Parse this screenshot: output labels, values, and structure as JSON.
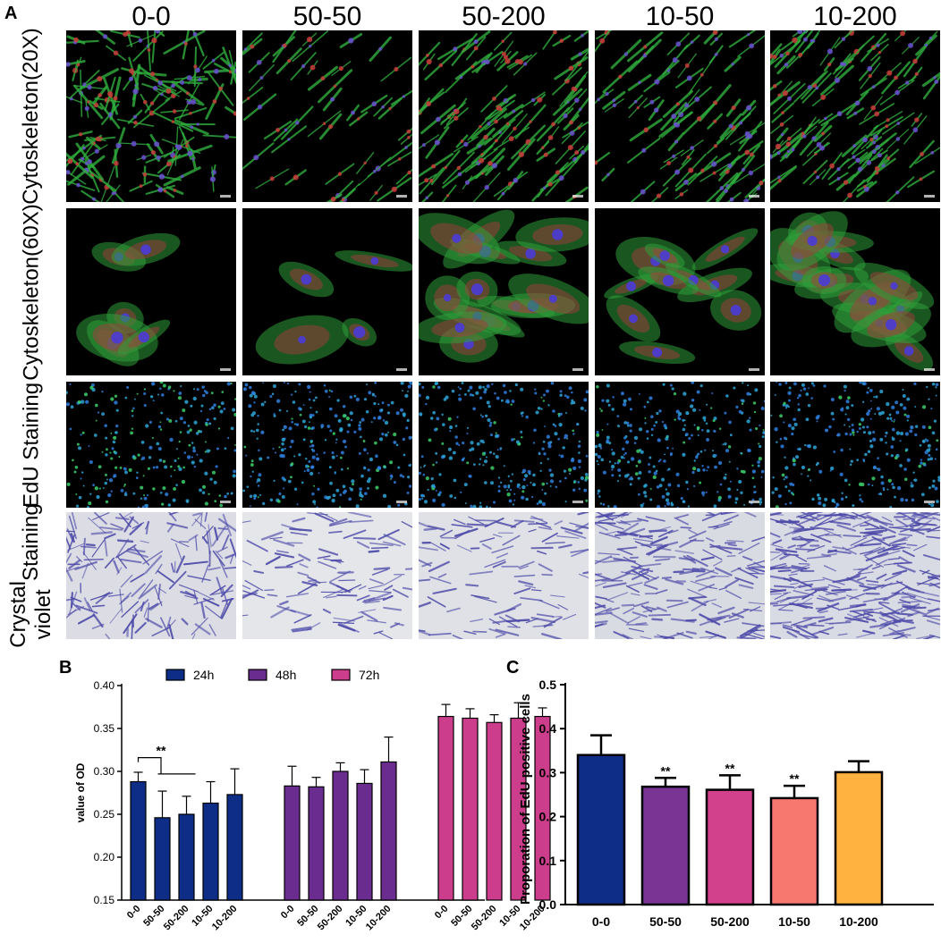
{
  "panel_a": {
    "letter": "A",
    "columns": [
      "0-0",
      "50-50",
      "50-200",
      "10-50",
      "10-200"
    ],
    "rows": [
      {
        "label_lines": [
          "Cytoskeleton",
          "(20X)"
        ],
        "kind": "cyto20"
      },
      {
        "label_lines": [
          "Cytoskeleton",
          "(60X)"
        ],
        "kind": "cyto60"
      },
      {
        "label_lines": [
          "EdU Staining"
        ],
        "kind": "edu"
      },
      {
        "label_lines": [
          "Crystal violet",
          "Staining"
        ],
        "kind": "crystal"
      }
    ]
  },
  "panel_b": {
    "letter": "B",
    "chart_data": {
      "type": "bar",
      "ylabel": "value of OD",
      "ylim": [
        0.15,
        0.4
      ],
      "yticks": [
        "0.15",
        "0.20",
        "0.25",
        "0.30",
        "0.35",
        "0.40"
      ],
      "categories": [
        "0-0",
        "50-50",
        "50-200",
        "10-50",
        "10-200"
      ],
      "series": [
        {
          "name": "24h",
          "color": "#0d2d86",
          "values": [
            0.288,
            0.246,
            0.25,
            0.263,
            0.273
          ],
          "errors": [
            0.011,
            0.031,
            0.021,
            0.025,
            0.03
          ]
        },
        {
          "name": "48h",
          "color": "#6a2d8f",
          "values": [
            0.283,
            0.282,
            0.3,
            0.286,
            0.311
          ],
          "errors": [
            0.023,
            0.011,
            0.01,
            0.016,
            0.029
          ]
        },
        {
          "name": "72h",
          "color": "#cc3d8c",
          "values": [
            0.364,
            0.362,
            0.357,
            0.362,
            0.364
          ],
          "errors": [
            0.014,
            0.011,
            0.009,
            0.018,
            0.01
          ]
        }
      ],
      "legend_placement": "top",
      "annotation": "**"
    }
  },
  "panel_c": {
    "letter": "C",
    "chart_data": {
      "type": "bar",
      "ylabel": "Proporation of EdU  positive cells",
      "ylim": [
        0.0,
        0.5
      ],
      "yticks": [
        "0.0",
        "0.1",
        "0.2",
        "0.3",
        "0.4",
        "0.5"
      ],
      "categories": [
        "0-0",
        "50-50",
        "50-200",
        "10-50",
        "10-200"
      ],
      "values": [
        0.34,
        0.268,
        0.261,
        0.242,
        0.301
      ],
      "errors": [
        0.045,
        0.02,
        0.033,
        0.028,
        0.025
      ],
      "colors": [
        "#0d2d86",
        "#7a3594",
        "#d2418c",
        "#f7786e",
        "#ffb23f"
      ],
      "annotations": [
        "",
        "**",
        "**",
        "**",
        ""
      ]
    }
  }
}
